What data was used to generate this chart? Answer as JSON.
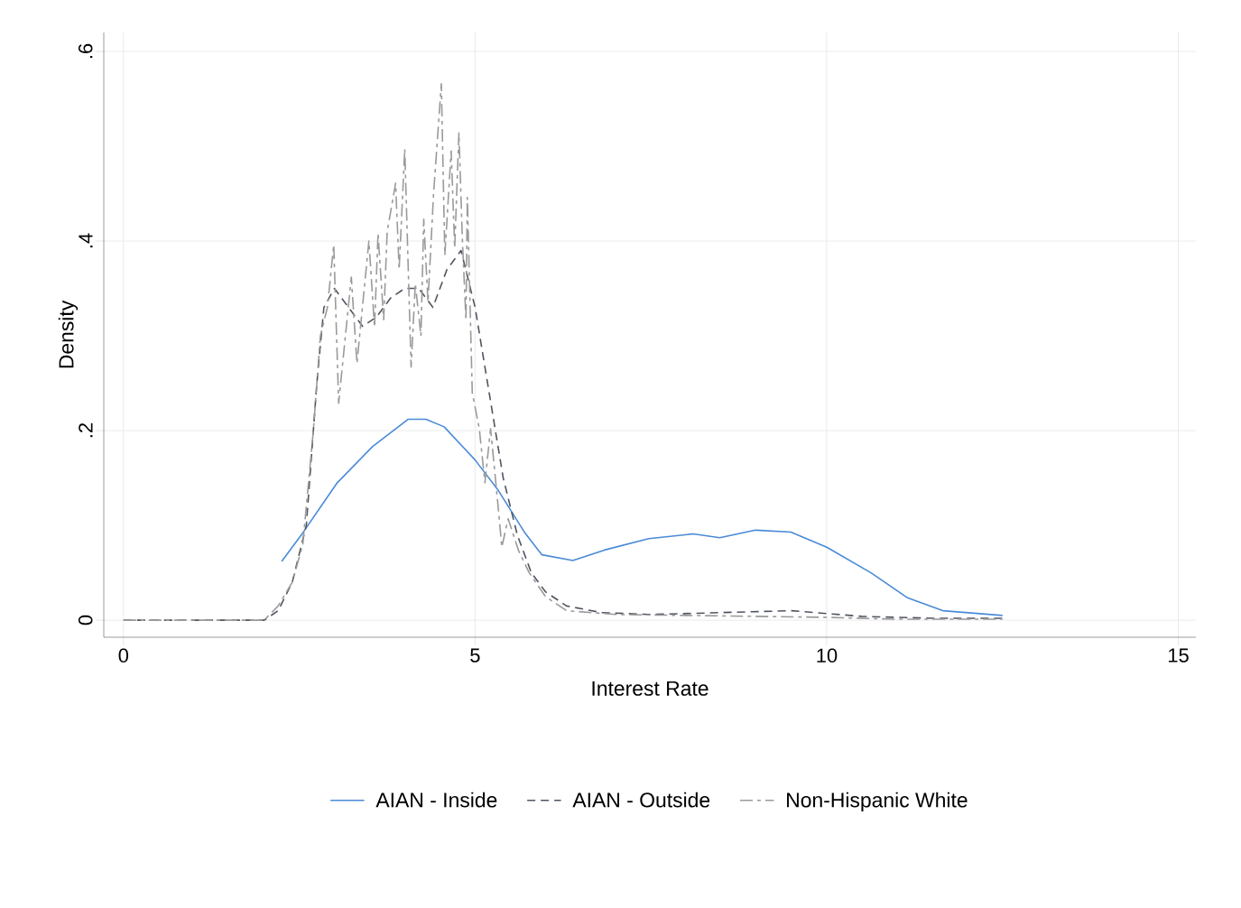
{
  "chart_data": {
    "type": "line",
    "xlabel": "Interest Rate",
    "ylabel": "Density",
    "xlim": [
      -0.28,
      15.25
    ],
    "ylim": [
      -0.018,
      0.62
    ],
    "xticks": [
      0,
      5,
      10,
      15
    ],
    "yticks": [
      {
        "value": 0,
        "label": "0"
      },
      {
        "value": 0.2,
        "label": ".2"
      },
      {
        "value": 0.4,
        "label": ".4"
      },
      {
        "value": 0.6,
        "label": ".6"
      }
    ],
    "grid": true,
    "legend": "bottom",
    "series": [
      {
        "name": "AIAN - Inside",
        "color": "#4a8ad8",
        "line_style": "solid",
        "x": [
          2.25,
          2.53,
          3.04,
          3.54,
          4.05,
          4.3,
          4.56,
          5.0,
          5.32,
          5.7,
          5.95,
          6.39,
          6.84,
          7.47,
          8.1,
          8.48,
          8.99,
          9.49,
          10.0,
          10.63,
          11.14,
          11.65,
          12.5
        ],
        "values": [
          0.062,
          0.09,
          0.145,
          0.183,
          0.212,
          0.212,
          0.204,
          0.169,
          0.138,
          0.093,
          0.069,
          0.063,
          0.074,
          0.086,
          0.091,
          0.087,
          0.095,
          0.093,
          0.077,
          0.05,
          0.024,
          0.01,
          0.005
        ]
      },
      {
        "name": "AIAN - Outside",
        "color": "#4f5560",
        "line_style": "dashed",
        "x": [
          0,
          2.0,
          2.2,
          2.4,
          2.6,
          2.75,
          2.85,
          3.0,
          3.2,
          3.4,
          3.6,
          3.8,
          4.0,
          4.2,
          4.4,
          4.6,
          4.8,
          5.0,
          5.2,
          5.4,
          5.6,
          5.8,
          6.0,
          6.3,
          6.8,
          7.5,
          8.5,
          9.5,
          10.5,
          11.5,
          12.5
        ],
        "values": [
          0,
          0,
          0.01,
          0.04,
          0.1,
          0.25,
          0.33,
          0.35,
          0.33,
          0.31,
          0.32,
          0.34,
          0.35,
          0.35,
          0.33,
          0.37,
          0.39,
          0.33,
          0.24,
          0.15,
          0.09,
          0.05,
          0.03,
          0.015,
          0.008,
          0.006,
          0.008,
          0.01,
          0.004,
          0.002,
          0.002
        ]
      },
      {
        "name": "Non-Hispanic White",
        "color": "#9a9a9a",
        "line_style": "dashdot",
        "x": [
          0,
          2.0,
          2.2,
          2.4,
          2.55,
          2.7,
          2.8,
          2.9,
          2.99,
          3.06,
          3.24,
          3.32,
          3.49,
          3.57,
          3.62,
          3.7,
          3.75,
          3.87,
          3.92,
          4.0,
          4.09,
          4.15,
          4.23,
          4.27,
          4.33,
          4.41,
          4.52,
          4.57,
          4.66,
          4.71,
          4.77,
          4.82,
          4.87,
          4.89,
          4.96,
          5.06,
          5.14,
          5.22,
          5.32,
          5.38,
          5.47,
          5.62,
          5.77,
          6.0,
          6.3,
          7.0,
          8.0,
          9.0,
          10.0,
          11.0,
          12.5
        ],
        "values": [
          0,
          0,
          0.015,
          0.04,
          0.08,
          0.2,
          0.3,
          0.33,
          0.396,
          0.229,
          0.362,
          0.271,
          0.4,
          0.309,
          0.408,
          0.317,
          0.41,
          0.461,
          0.37,
          0.497,
          0.267,
          0.355,
          0.3,
          0.423,
          0.336,
          0.45,
          0.566,
          0.385,
          0.495,
          0.393,
          0.514,
          0.4,
          0.317,
          0.446,
          0.24,
          0.202,
          0.145,
          0.202,
          0.126,
          0.077,
          0.107,
          0.073,
          0.05,
          0.025,
          0.01,
          0.006,
          0.005,
          0.004,
          0.003,
          0.001,
          0.001
        ]
      }
    ]
  }
}
